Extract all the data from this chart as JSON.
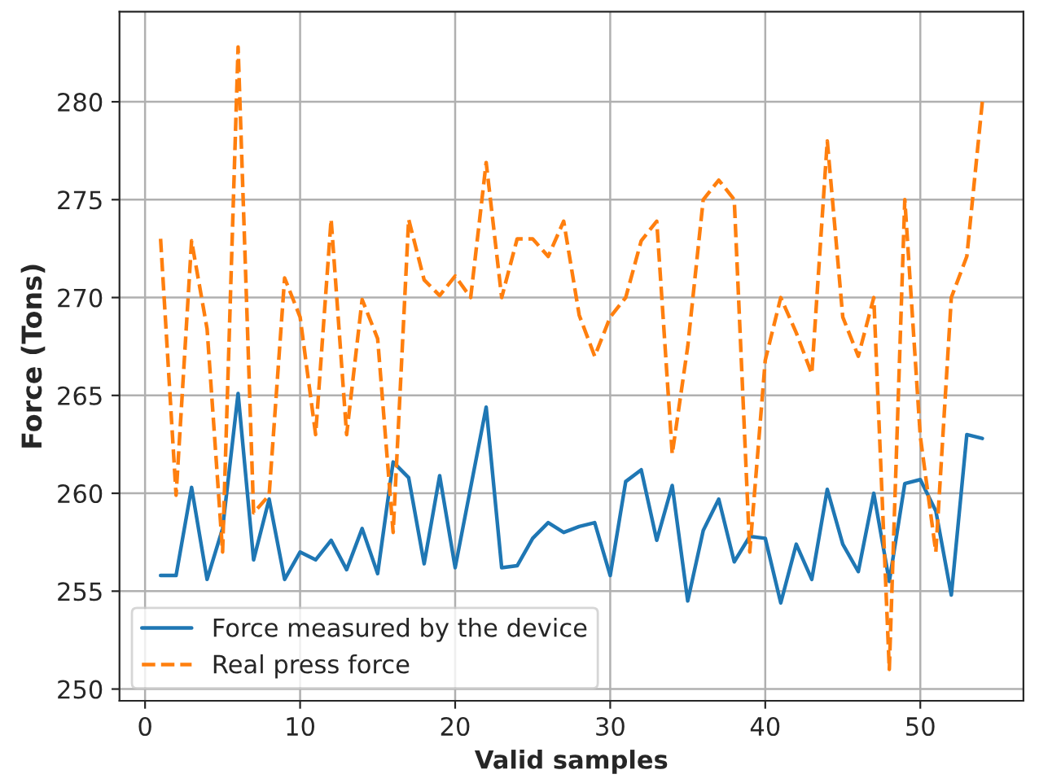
{
  "chart_data": {
    "type": "line",
    "xlabel": "Valid samples",
    "ylabel": "Force (Tons)",
    "x": [
      1,
      2,
      3,
      4,
      5,
      6,
      7,
      8,
      9,
      10,
      11,
      12,
      13,
      14,
      15,
      16,
      17,
      18,
      19,
      20,
      21,
      22,
      23,
      24,
      25,
      26,
      27,
      28,
      29,
      30,
      31,
      32,
      33,
      34,
      35,
      36,
      37,
      38,
      39,
      40,
      41,
      42,
      43,
      44,
      45,
      46,
      47,
      48,
      49,
      50,
      51,
      52,
      53,
      54
    ],
    "series": [
      {
        "name": "Force measured by the device",
        "color": "#1f77b4",
        "line_style": "solid",
        "values": [
          255.8,
          255.8,
          260.3,
          255.6,
          258.2,
          265.1,
          256.6,
          259.7,
          255.6,
          257.0,
          256.6,
          257.6,
          256.1,
          258.2,
          255.9,
          261.6,
          260.8,
          256.4,
          260.9,
          256.2,
          260.3,
          264.4,
          256.2,
          256.3,
          257.7,
          258.5,
          258.0,
          258.3,
          258.5,
          255.8,
          260.6,
          261.2,
          257.6,
          260.4,
          254.5,
          258.1,
          259.7,
          256.5,
          257.8,
          257.7,
          254.4,
          257.4,
          255.6,
          260.2,
          257.4,
          256.0,
          260.0,
          255.5,
          260.5,
          260.7,
          259.1,
          254.8,
          263.0,
          262.8
        ]
      },
      {
        "name": "Real press force",
        "color": "#ff7f0e",
        "line_style": "dashed",
        "values": [
          273.0,
          259.9,
          272.9,
          268.4,
          257.0,
          282.8,
          259.0,
          259.9,
          271.0,
          269.0,
          263.0,
          274.0,
          263.0,
          269.9,
          267.9,
          258.0,
          274.0,
          270.9,
          270.1,
          271.1,
          270.0,
          276.9,
          270.0,
          273.0,
          273.0,
          272.1,
          273.9,
          269.1,
          267.0,
          269.0,
          270.0,
          272.9,
          273.9,
          262.0,
          267.5,
          275.0,
          276.0,
          275.0,
          257.0,
          266.8,
          270.0,
          268.2,
          266.1,
          278.0,
          269.0,
          267.0,
          270.0,
          251.0,
          275.0,
          262.9,
          257.0,
          270.0,
          272.1,
          280.0
        ]
      }
    ],
    "xlim": [
      -1.65,
      56.65
    ],
    "ylim": [
      249.4,
      284.6
    ],
    "xticks": [
      0,
      10,
      20,
      30,
      40,
      50
    ],
    "yticks": [
      250,
      255,
      260,
      265,
      270,
      275,
      280
    ],
    "grid": true,
    "legend": "bottom left"
  }
}
